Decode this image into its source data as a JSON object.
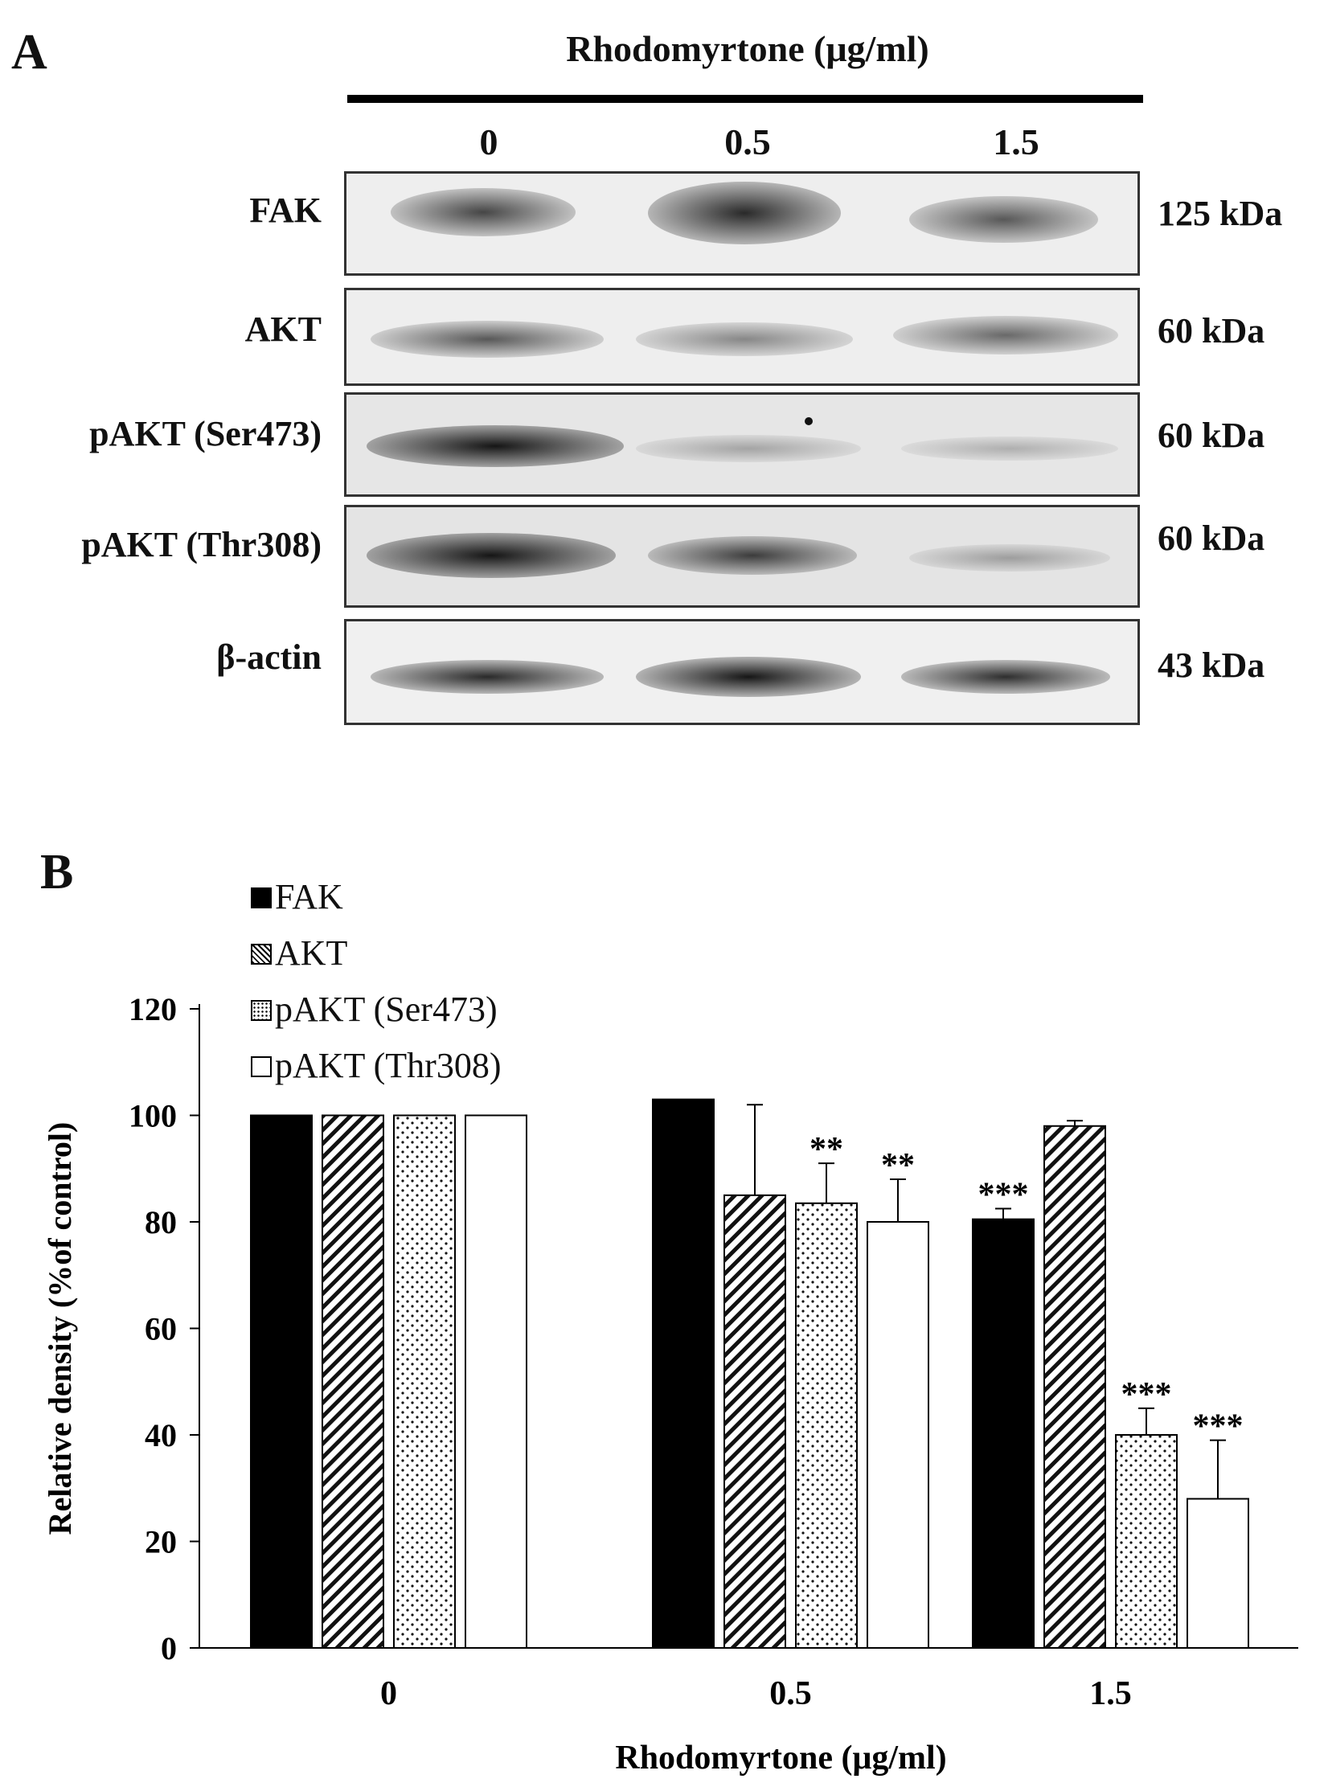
{
  "panel_a": {
    "letter": "A",
    "title": "Rhodomyrtone (μg/ml)",
    "doses": [
      "0",
      "0.5",
      "1.5"
    ],
    "blots": [
      {
        "label": "FAK",
        "kda": "125 kDa"
      },
      {
        "label": "AKT",
        "kda": "60 kDa"
      },
      {
        "label": "pAKT  (Ser473)",
        "kda": "60 kDa"
      },
      {
        "label": "pAKT  (Thr308)",
        "kda": "60 kDa"
      },
      {
        "label": "β-actin",
        "kda": "43 kDa"
      }
    ]
  },
  "panel_b": {
    "letter": "B"
  },
  "chart_data": {
    "type": "bar",
    "categories": [
      "0",
      "0.5",
      "1.5"
    ],
    "series": [
      {
        "name": "FAK",
        "values": [
          100,
          103,
          80.5
        ],
        "errors": [
          0,
          0,
          2
        ],
        "significance": [
          "",
          "",
          "***"
        ],
        "pattern": "solid"
      },
      {
        "name": "AKT",
        "values": [
          100,
          85,
          98
        ],
        "errors": [
          0,
          17,
          1
        ],
        "significance": [
          "",
          "",
          ""
        ],
        "pattern": "diagonal"
      },
      {
        "name": "pAKT (Ser473)",
        "values": [
          100,
          83.5,
          40
        ],
        "errors": [
          0,
          7.5,
          5
        ],
        "significance": [
          "",
          "**",
          "***"
        ],
        "pattern": "dotted"
      },
      {
        "name": "pAKT (Thr308)",
        "values": [
          100,
          80,
          28
        ],
        "errors": [
          0,
          8,
          11
        ],
        "significance": [
          "",
          "**",
          "***"
        ],
        "pattern": "white"
      }
    ],
    "xlabel": "Rhodomyrtone  (μg/ml)",
    "ylabel": "Relative density (%of control)",
    "ylim": [
      0,
      120
    ],
    "yticks": [
      0,
      20,
      40,
      60,
      80,
      100,
      120
    ],
    "legend_position": "top-left",
    "grid": false
  }
}
